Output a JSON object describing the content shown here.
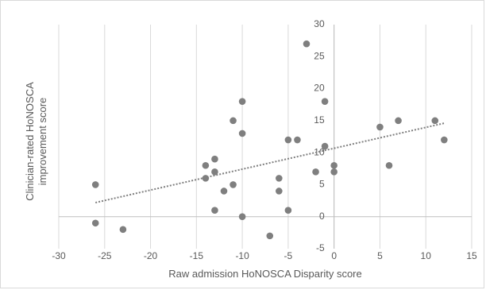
{
  "chart_data": {
    "type": "scatter",
    "title": "",
    "xlabel": "Raw admission HoNOSCA Disparity score",
    "ylabel": "Clinician-rated HoNOSCA improvement score",
    "xlim": [
      -30,
      15
    ],
    "ylim": [
      -5,
      30
    ],
    "x_ticks": [
      -30,
      -25,
      -20,
      -15,
      -10,
      -5,
      0,
      5,
      10,
      15
    ],
    "y_ticks": [
      -5,
      0,
      5,
      10,
      15,
      20,
      25,
      30
    ],
    "x_tick_labels": [
      "-30",
      "-25",
      "-20",
      "-15",
      "-10",
      "-5",
      "0",
      "5",
      "10",
      "15"
    ],
    "y_tick_labels": [
      "-5",
      "0",
      "5",
      "10",
      "15",
      "20",
      "25",
      "30"
    ],
    "grid": {
      "vertical": true,
      "horizontal": false
    },
    "series": [
      {
        "color": "#7f7f7f",
        "points": [
          [
            -26,
            5
          ],
          [
            -26,
            -1
          ],
          [
            -23,
            -2
          ],
          [
            -14,
            8
          ],
          [
            -14,
            6
          ],
          [
            -13,
            9
          ],
          [
            -13,
            7
          ],
          [
            -13,
            1
          ],
          [
            -12,
            4
          ],
          [
            -11,
            15
          ],
          [
            -11,
            5
          ],
          [
            -10,
            18
          ],
          [
            -10,
            13
          ],
          [
            -10,
            0
          ],
          [
            -7,
            -3
          ],
          [
            -6,
            6
          ],
          [
            -6,
            4
          ],
          [
            -5,
            12
          ],
          [
            -5,
            1
          ],
          [
            -4,
            12
          ],
          [
            -3,
            27
          ],
          [
            -2,
            7
          ],
          [
            -1,
            18
          ],
          [
            -1,
            11
          ],
          [
            0,
            8
          ],
          [
            0,
            7
          ],
          [
            5,
            14
          ],
          [
            6,
            8
          ],
          [
            7,
            15
          ],
          [
            11,
            15
          ],
          [
            12,
            12
          ]
        ]
      }
    ],
    "trendline": {
      "style": "dotted",
      "color": "#7f7f7f",
      "x": [
        -26,
        12
      ],
      "y": [
        2.2,
        14.6
      ]
    }
  }
}
